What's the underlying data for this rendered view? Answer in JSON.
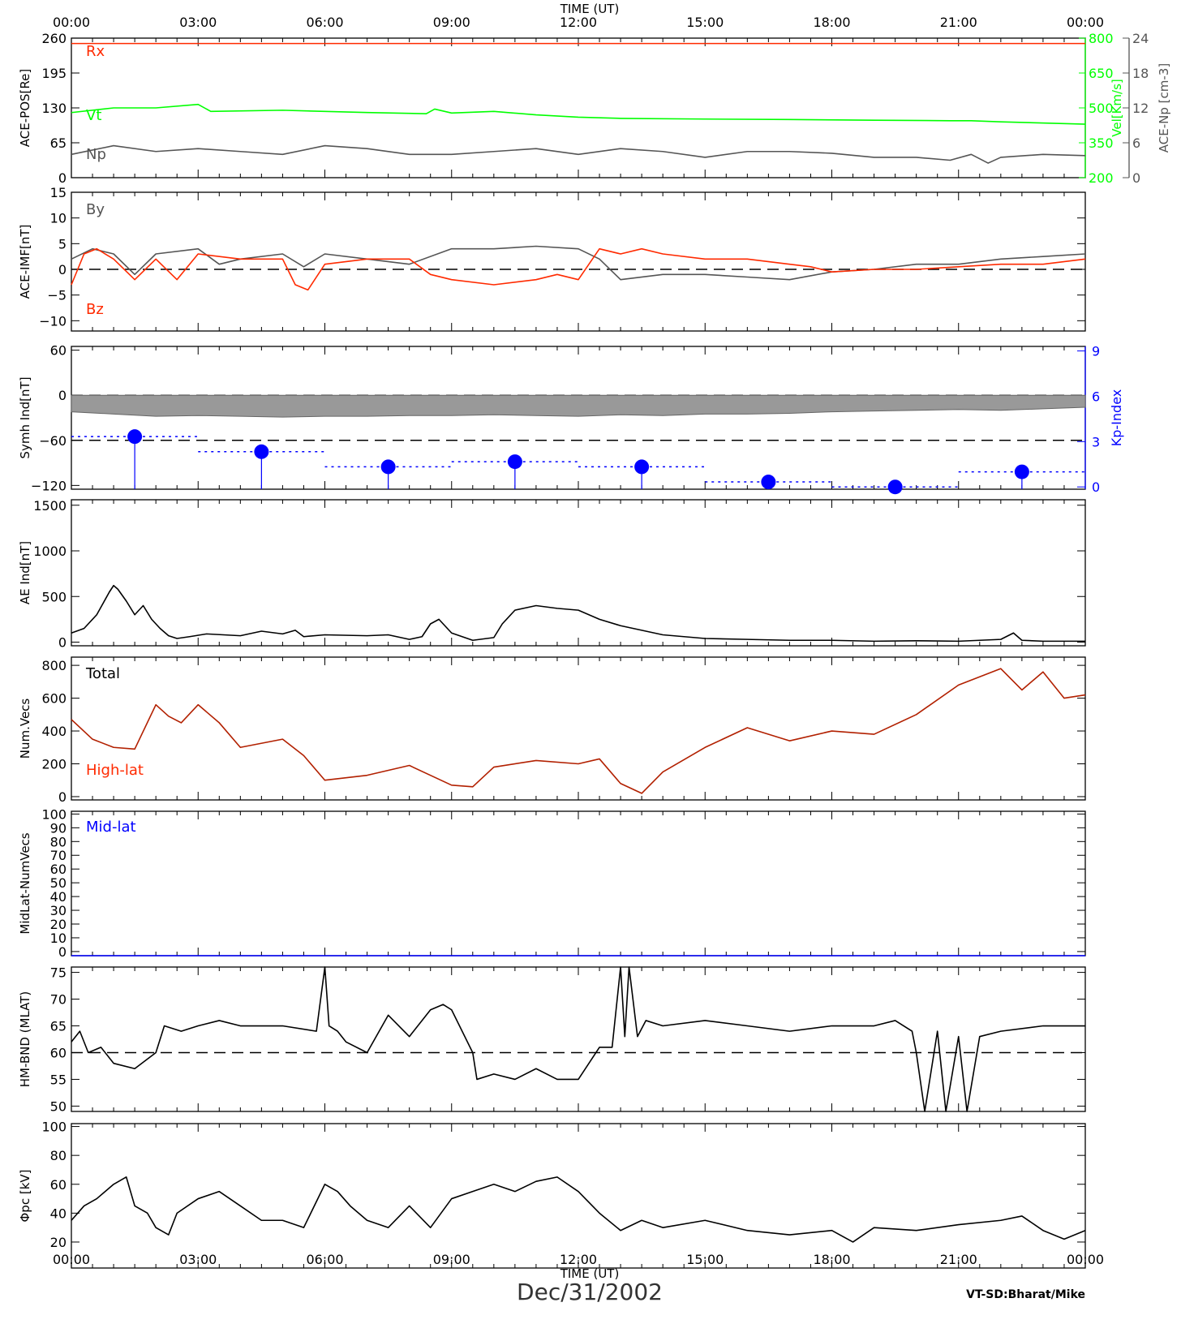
{
  "header": {
    "time_title": "TIME (UT)"
  },
  "footer": {
    "time_title": "TIME (UT)",
    "date": "Dec/31/2002",
    "credit": "VT-SD:Bharat/Mike"
  },
  "time_ticks": [
    "00:00",
    "03:00",
    "06:00",
    "09:00",
    "12:00",
    "15:00",
    "18:00",
    "21:00",
    "00:00"
  ],
  "colors": {
    "axis": "#000000",
    "red": "#ff2a00",
    "green": "#00ff00",
    "gray": "#555555",
    "blue": "#0000ff",
    "darkred": "#b22000",
    "fill": "#999999"
  },
  "chart_data": [
    {
      "id": "ace-pos",
      "type": "line",
      "ylabel": "ACE-POS[Re]",
      "yticks": [
        0,
        65,
        130,
        195,
        260
      ],
      "ylim": [
        0,
        260
      ],
      "right_axes": [
        {
          "label": "Vel[Km/s]",
          "ticks": [
            200,
            350,
            500,
            650,
            800
          ],
          "lim": [
            200,
            800
          ],
          "color": "#00ff00"
        },
        {
          "label": "ACE-Np [cm-3]",
          "ticks": [
            0,
            6,
            12,
            18,
            24
          ],
          "lim": [
            0,
            24
          ],
          "color": "#555555"
        }
      ],
      "annotations": [
        {
          "text": "Rx",
          "color": "#ff2a00"
        },
        {
          "text": "Vt",
          "color": "#00ff00"
        },
        {
          "text": "Np",
          "color": "#555555"
        }
      ],
      "series": [
        {
          "name": "Rx",
          "axis": "left",
          "color": "#ff2a00",
          "x": [
            0,
            24
          ],
          "values": [
            250,
            250
          ]
        },
        {
          "name": "Vt",
          "axis": "right1",
          "color": "#00ff00",
          "x": [
            0,
            1,
            2,
            3,
            3.3,
            5,
            7,
            8.4,
            8.6,
            9,
            10,
            11,
            12,
            13,
            15,
            17,
            19,
            20.8,
            21.3,
            22,
            24
          ],
          "values": [
            480,
            500,
            500,
            515,
            485,
            490,
            480,
            475,
            495,
            478,
            485,
            470,
            460,
            455,
            452,
            450,
            447,
            445,
            445,
            440,
            430
          ]
        },
        {
          "name": "Np",
          "axis": "right2",
          "color": "#555555",
          "x": [
            0,
            1,
            2,
            3,
            4,
            5,
            6,
            7,
            8,
            9,
            10,
            11,
            12,
            13,
            14,
            15,
            16,
            17,
            18,
            19,
            20,
            20.8,
            21.3,
            21.7,
            22,
            23,
            24
          ],
          "values": [
            4,
            5.5,
            4.5,
            5,
            4.5,
            4,
            5.5,
            5,
            4,
            4,
            4.5,
            5,
            4,
            5,
            4.5,
            3.5,
            4.5,
            4.5,
            4.2,
            3.5,
            3.5,
            3,
            4,
            2.5,
            3.5,
            4,
            3.8
          ]
        }
      ]
    },
    {
      "id": "ace-imf",
      "type": "line",
      "ylabel": "ACE-IMF[nT]",
      "yticks": [
        -10,
        -5,
        0,
        5,
        10,
        15
      ],
      "ylim": [
        -12,
        15
      ],
      "dashed_zero": true,
      "annotations": [
        {
          "text": "By",
          "color": "#555555"
        },
        {
          "text": "Bz",
          "color": "#ff2a00"
        }
      ],
      "series": [
        {
          "name": "By",
          "color": "#555555",
          "x": [
            0,
            0.5,
            1,
            1.5,
            2,
            3,
            3.5,
            4,
            5,
            5.5,
            6,
            7,
            8,
            9,
            10,
            11,
            12,
            12.5,
            13,
            14,
            15,
            16,
            17,
            18,
            19,
            20,
            21,
            22,
            23,
            24
          ],
          "values": [
            2,
            4,
            3,
            -1,
            3,
            4,
            1,
            2,
            3,
            0.5,
            3,
            2,
            1,
            4,
            4,
            4.5,
            4,
            2,
            -2,
            -1,
            -1,
            -1.5,
            -2,
            -0.5,
            0,
            1,
            1,
            2,
            2.5,
            3
          ]
        },
        {
          "name": "Bz",
          "color": "#ff2a00",
          "x": [
            0,
            0.3,
            0.6,
            1,
            1.5,
            2,
            2.5,
            3,
            4,
            5,
            5.3,
            5.6,
            6,
            7,
            8,
            8.5,
            9,
            10,
            11,
            11.5,
            12,
            12.5,
            13,
            13.5,
            14,
            15,
            16,
            17,
            17.5,
            18,
            19,
            20,
            21,
            22,
            23,
            24
          ],
          "values": [
            -3,
            3,
            4,
            2,
            -2,
            2,
            -2,
            3,
            2,
            2,
            -3,
            -4,
            1,
            2,
            2,
            -1,
            -2,
            -3,
            -2,
            -1,
            -2,
            4,
            3,
            4,
            3,
            2,
            2,
            1,
            0.5,
            -0.5,
            0,
            0,
            0.5,
            1,
            1,
            2
          ]
        }
      ]
    },
    {
      "id": "symh-kp",
      "type": "area",
      "ylabel": "Symh Ind[nT]",
      "yticks": [
        -120,
        -60,
        0,
        60
      ],
      "ylim": [
        -125,
        65
      ],
      "dashed_lines": [
        0,
        -60
      ],
      "series": [
        {
          "name": "Symh",
          "color": "#999999",
          "x": [
            0,
            1,
            2,
            3,
            4,
            5,
            6,
            7,
            8,
            9,
            10,
            11,
            12,
            13,
            14,
            15,
            16,
            17,
            18,
            19,
            20,
            21,
            22,
            23,
            24
          ],
          "values": [
            -22,
            -25,
            -28,
            -27,
            -28,
            -29,
            -28,
            -28,
            -27,
            -27,
            -26,
            -27,
            -28,
            -26,
            -27,
            -25,
            -25,
            -24,
            -22,
            -21,
            -20,
            -19,
            -20,
            -18,
            -16
          ]
        }
      ],
      "right_axis": {
        "label": "Kp-Index",
        "ticks": [
          0,
          3,
          6,
          9
        ],
        "lim": [
          -0.15,
          9.3
        ],
        "color": "#0000ff"
      },
      "kp": [
        3.33,
        2.33,
        1.33,
        1.67,
        1.33,
        0.33,
        0,
        1.0
      ]
    },
    {
      "id": "ae",
      "type": "line",
      "ylabel": "AE Ind[nT]",
      "yticks": [
        0,
        500,
        1000,
        1500
      ],
      "ylim": [
        -40,
        1560
      ],
      "series": [
        {
          "name": "AE",
          "color": "#000000",
          "x": [
            0,
            0.3,
            0.6,
            0.9,
            1.0,
            1.1,
            1.3,
            1.5,
            1.7,
            1.9,
            2.1,
            2.3,
            2.5,
            2.8,
            3.2,
            4,
            4.5,
            5,
            5.3,
            5.5,
            6,
            7,
            7.5,
            8,
            8.3,
            8.5,
            8.7,
            9,
            9.5,
            10,
            10.2,
            10.5,
            11,
            11.5,
            12,
            12.5,
            13,
            14,
            15,
            16,
            17,
            18,
            19,
            20,
            21,
            22,
            22.3,
            22.5,
            23,
            24
          ],
          "values": [
            100,
            150,
            300,
            550,
            620,
            580,
            450,
            300,
            400,
            250,
            150,
            70,
            40,
            60,
            90,
            70,
            120,
            90,
            130,
            60,
            80,
            70,
            80,
            30,
            60,
            200,
            250,
            100,
            20,
            50,
            200,
            350,
            400,
            370,
            350,
            250,
            180,
            80,
            40,
            30,
            20,
            20,
            10,
            15,
            10,
            30,
            100,
            20,
            10,
            10
          ]
        }
      ]
    },
    {
      "id": "num-vecs",
      "type": "line",
      "ylabel": "Num.Vecs",
      "yticks": [
        0,
        200,
        400,
        600,
        800
      ],
      "ylim": [
        -20,
        850
      ],
      "annotations": [
        {
          "text": "Total",
          "color": "#000000"
        },
        {
          "text": "High-lat",
          "color": "#ff2a00"
        }
      ],
      "series": [
        {
          "name": "High-lat",
          "color": "#b22000",
          "x": [
            0,
            0.5,
            1,
            1.5,
            2,
            2.3,
            2.6,
            3,
            3.5,
            4,
            5,
            5.5,
            6,
            7,
            8,
            9,
            9.5,
            10,
            11,
            12,
            12.5,
            13,
            13.5,
            14,
            15,
            16,
            17,
            18,
            19,
            20,
            21,
            22,
            22.5,
            23,
            23.5,
            24
          ],
          "values": [
            470,
            350,
            300,
            290,
            560,
            490,
            450,
            560,
            450,
            300,
            350,
            250,
            100,
            130,
            190,
            70,
            60,
            180,
            220,
            200,
            230,
            80,
            20,
            150,
            300,
            420,
            340,
            400,
            380,
            500,
            680,
            780,
            650,
            760,
            600,
            620
          ]
        }
      ]
    },
    {
      "id": "midlat",
      "type": "line",
      "ylabel": "MidLat-NumVecs",
      "yticks": [
        0,
        10,
        20,
        30,
        40,
        50,
        60,
        70,
        80,
        90,
        100
      ],
      "ylim": [
        -3,
        102
      ],
      "annotations": [
        {
          "text": "Mid-lat",
          "color": "#0000ff"
        }
      ],
      "series": [
        {
          "name": "Mid-lat",
          "color": "#0000ff",
          "x": [
            0,
            24
          ],
          "values": [
            -3,
            -3
          ]
        }
      ]
    },
    {
      "id": "hm-bnd",
      "type": "line",
      "ylabel": "HM-BND (MLAT)",
      "yticks": [
        50,
        55,
        60,
        65,
        70,
        75
      ],
      "ylim": [
        49,
        76
      ],
      "dashed_lines": [
        60
      ],
      "series": [
        {
          "name": "HM-BND",
          "color": "#000000",
          "x": [
            0,
            0.2,
            0.4,
            0.7,
            1,
            1.5,
            2,
            2.2,
            2.6,
            3,
            3.5,
            4,
            5,
            5.8,
            6,
            6.1,
            6.3,
            6.5,
            7,
            7.5,
            8,
            8.5,
            8.8,
            9,
            9.5,
            9.6,
            10,
            10.5,
            11,
            11.5,
            12,
            12.5,
            12.8,
            13.0,
            13.1,
            13.2,
            13.4,
            13.6,
            14,
            15,
            16,
            17,
            18,
            19,
            19.5,
            19.9,
            20,
            20.2,
            20.5,
            20.7,
            21,
            21.2,
            21.5,
            22,
            23,
            24
          ],
          "values": [
            62,
            64,
            60,
            61,
            58,
            57,
            60,
            65,
            64,
            65,
            66,
            65,
            65,
            64,
            76,
            65,
            64,
            62,
            60,
            67,
            63,
            68,
            69,
            68,
            60,
            55,
            56,
            55,
            57,
            55,
            55,
            61,
            61,
            76,
            63,
            76,
            63,
            66,
            65,
            66,
            65,
            64,
            65,
            65,
            66,
            64,
            60,
            49,
            64,
            49,
            63,
            49,
            63,
            64,
            65,
            65
          ]
        }
      ]
    },
    {
      "id": "phi-pc",
      "type": "line",
      "ylabel": "Φpc [kV]",
      "yticks": [
        20,
        40,
        60,
        80,
        100
      ],
      "ylim": [
        2,
        102
      ],
      "series": [
        {
          "name": "Phi-pc",
          "color": "#000000",
          "x": [
            0,
            0.3,
            0.6,
            1,
            1.3,
            1.5,
            1.8,
            2,
            2.3,
            2.5,
            3,
            3.5,
            4,
            4.5,
            5,
            5.5,
            6,
            6.3,
            6.6,
            7,
            7.5,
            8,
            8.5,
            9,
            9.5,
            10,
            10.5,
            11,
            11.5,
            12,
            12.5,
            13,
            13.5,
            14,
            15,
            16,
            17,
            18,
            18.5,
            19,
            20,
            21,
            22,
            22.5,
            23,
            23.5,
            24
          ],
          "values": [
            35,
            45,
            50,
            60,
            65,
            45,
            40,
            30,
            25,
            40,
            50,
            55,
            45,
            35,
            35,
            30,
            60,
            55,
            45,
            35,
            30,
            45,
            30,
            50,
            55,
            60,
            55,
            62,
            65,
            55,
            40,
            28,
            35,
            30,
            35,
            28,
            25,
            28,
            20,
            30,
            28,
            32,
            35,
            38,
            28,
            22,
            28
          ]
        }
      ]
    }
  ]
}
